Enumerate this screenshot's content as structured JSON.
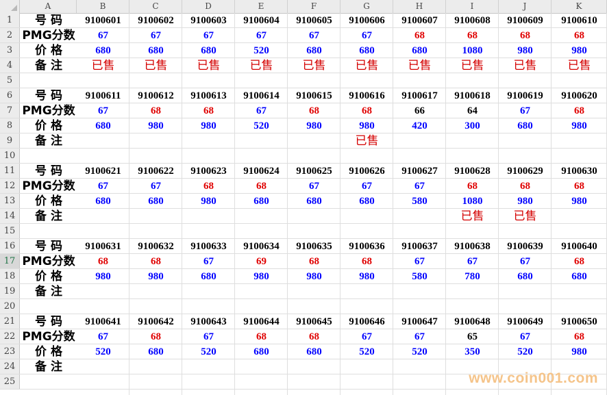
{
  "columns": [
    "A",
    "B",
    "C",
    "D",
    "E",
    "F",
    "G",
    "H",
    "I",
    "J",
    "K"
  ],
  "row_numbers": [
    "1",
    "2",
    "3",
    "4",
    "5",
    "6",
    "7",
    "8",
    "9",
    "10",
    "11",
    "12",
    "13",
    "14",
    "15",
    "16",
    "17",
    "18",
    "19",
    "20",
    "21",
    "22",
    "23",
    "24",
    "25"
  ],
  "active_row": "17",
  "labels": {
    "number": "号  码",
    "pmg": "PMG分数",
    "price": "价  格",
    "remark": "备  注"
  },
  "colors": {
    "blue": "#0000ff",
    "red": "#e00000",
    "black": "#000000",
    "sold": "#d40000"
  },
  "blocks": [
    {
      "numbers": [
        "9100601",
        "9100602",
        "9100603",
        "9100604",
        "9100605",
        "9100606",
        "9100607",
        "9100608",
        "9100609",
        "9100610"
      ],
      "pmg": [
        {
          "v": "67",
          "c": "blue"
        },
        {
          "v": "67",
          "c": "blue"
        },
        {
          "v": "67",
          "c": "blue"
        },
        {
          "v": "67",
          "c": "blue"
        },
        {
          "v": "67",
          "c": "blue"
        },
        {
          "v": "67",
          "c": "blue"
        },
        {
          "v": "68",
          "c": "red"
        },
        {
          "v": "68",
          "c": "red"
        },
        {
          "v": "68",
          "c": "red"
        },
        {
          "v": "68",
          "c": "red"
        }
      ],
      "price": [
        {
          "v": "680",
          "c": "blue"
        },
        {
          "v": "680",
          "c": "blue"
        },
        {
          "v": "680",
          "c": "blue"
        },
        {
          "v": "520",
          "c": "blue"
        },
        {
          "v": "680",
          "c": "blue"
        },
        {
          "v": "680",
          "c": "blue"
        },
        {
          "v": "680",
          "c": "blue"
        },
        {
          "v": "1080",
          "c": "blue"
        },
        {
          "v": "980",
          "c": "blue"
        },
        {
          "v": "980",
          "c": "blue"
        }
      ],
      "remark": [
        "已售",
        "已售",
        "已售",
        "已售",
        "已售",
        "已售",
        "已售",
        "已售",
        "已售",
        "已售"
      ]
    },
    {
      "numbers": [
        "9100611",
        "9100612",
        "9100613",
        "9100614",
        "9100615",
        "9100616",
        "9100617",
        "9100618",
        "9100619",
        "9100620"
      ],
      "pmg": [
        {
          "v": "67",
          "c": "blue"
        },
        {
          "v": "68",
          "c": "red"
        },
        {
          "v": "68",
          "c": "red"
        },
        {
          "v": "67",
          "c": "blue"
        },
        {
          "v": "68",
          "c": "red"
        },
        {
          "v": "68",
          "c": "red"
        },
        {
          "v": "66",
          "c": "black"
        },
        {
          "v": "64",
          "c": "black"
        },
        {
          "v": "67",
          "c": "blue"
        },
        {
          "v": "68",
          "c": "red"
        }
      ],
      "price": [
        {
          "v": "680",
          "c": "blue"
        },
        {
          "v": "980",
          "c": "blue"
        },
        {
          "v": "980",
          "c": "blue"
        },
        {
          "v": "520",
          "c": "blue"
        },
        {
          "v": "980",
          "c": "blue"
        },
        {
          "v": "980",
          "c": "blue"
        },
        {
          "v": "420",
          "c": "blue"
        },
        {
          "v": "300",
          "c": "blue"
        },
        {
          "v": "680",
          "c": "blue"
        },
        {
          "v": "980",
          "c": "blue"
        }
      ],
      "remark": [
        "",
        "",
        "",
        "",
        "",
        "已售",
        "",
        "",
        "",
        ""
      ]
    },
    {
      "numbers": [
        "9100621",
        "9100622",
        "9100623",
        "9100624",
        "9100625",
        "9100626",
        "9100627",
        "9100628",
        "9100629",
        "9100630"
      ],
      "pmg": [
        {
          "v": "67",
          "c": "blue"
        },
        {
          "v": "67",
          "c": "blue"
        },
        {
          "v": "68",
          "c": "red"
        },
        {
          "v": "68",
          "c": "red"
        },
        {
          "v": "67",
          "c": "blue"
        },
        {
          "v": "67",
          "c": "blue"
        },
        {
          "v": "67",
          "c": "blue"
        },
        {
          "v": "68",
          "c": "red"
        },
        {
          "v": "68",
          "c": "red"
        },
        {
          "v": "68",
          "c": "red"
        }
      ],
      "price": [
        {
          "v": "680",
          "c": "blue"
        },
        {
          "v": "680",
          "c": "blue"
        },
        {
          "v": "980",
          "c": "blue"
        },
        {
          "v": "680",
          "c": "blue"
        },
        {
          "v": "680",
          "c": "blue"
        },
        {
          "v": "680",
          "c": "blue"
        },
        {
          "v": "580",
          "c": "blue"
        },
        {
          "v": "1080",
          "c": "blue"
        },
        {
          "v": "980",
          "c": "blue"
        },
        {
          "v": "980",
          "c": "blue"
        }
      ],
      "remark": [
        "",
        "",
        "",
        "",
        "",
        "",
        "",
        "已售",
        "已售",
        ""
      ]
    },
    {
      "numbers": [
        "9100631",
        "9100632",
        "9100633",
        "9100634",
        "9100635",
        "9100636",
        "9100637",
        "9100638",
        "9100639",
        "9100640"
      ],
      "pmg": [
        {
          "v": "68",
          "c": "red"
        },
        {
          "v": "68",
          "c": "red"
        },
        {
          "v": "67",
          "c": "blue"
        },
        {
          "v": "69",
          "c": "red"
        },
        {
          "v": "68",
          "c": "red"
        },
        {
          "v": "68",
          "c": "red"
        },
        {
          "v": "67",
          "c": "blue"
        },
        {
          "v": "67",
          "c": "blue"
        },
        {
          "v": "67",
          "c": "blue"
        },
        {
          "v": "68",
          "c": "red"
        }
      ],
      "price": [
        {
          "v": "980",
          "c": "blue"
        },
        {
          "v": "980",
          "c": "blue"
        },
        {
          "v": "680",
          "c": "blue"
        },
        {
          "v": "980",
          "c": "blue"
        },
        {
          "v": "980",
          "c": "blue"
        },
        {
          "v": "980",
          "c": "blue"
        },
        {
          "v": "580",
          "c": "blue"
        },
        {
          "v": "780",
          "c": "blue"
        },
        {
          "v": "680",
          "c": "blue"
        },
        {
          "v": "680",
          "c": "blue"
        }
      ],
      "remark": [
        "",
        "",
        "",
        "",
        "",
        "",
        "",
        "",
        "",
        ""
      ]
    },
    {
      "numbers": [
        "9100641",
        "9100642",
        "9100643",
        "9100644",
        "9100645",
        "9100646",
        "9100647",
        "9100648",
        "9100649",
        "9100650"
      ],
      "pmg": [
        {
          "v": "67",
          "c": "blue"
        },
        {
          "v": "68",
          "c": "red"
        },
        {
          "v": "67",
          "c": "blue"
        },
        {
          "v": "68",
          "c": "red"
        },
        {
          "v": "68",
          "c": "red"
        },
        {
          "v": "67",
          "c": "blue"
        },
        {
          "v": "67",
          "c": "blue"
        },
        {
          "v": "65",
          "c": "black"
        },
        {
          "v": "67",
          "c": "blue"
        },
        {
          "v": "68",
          "c": "red"
        }
      ],
      "price": [
        {
          "v": "520",
          "c": "blue"
        },
        {
          "v": "680",
          "c": "blue"
        },
        {
          "v": "520",
          "c": "blue"
        },
        {
          "v": "680",
          "c": "blue"
        },
        {
          "v": "680",
          "c": "blue"
        },
        {
          "v": "520",
          "c": "blue"
        },
        {
          "v": "520",
          "c": "blue"
        },
        {
          "v": "350",
          "c": "blue"
        },
        {
          "v": "520",
          "c": "blue"
        },
        {
          "v": "980",
          "c": "blue"
        }
      ],
      "remark": [
        "",
        "",
        "",
        "",
        "",
        "",
        "",
        "",
        "",
        ""
      ]
    }
  ],
  "watermark": "www.coin001.com"
}
